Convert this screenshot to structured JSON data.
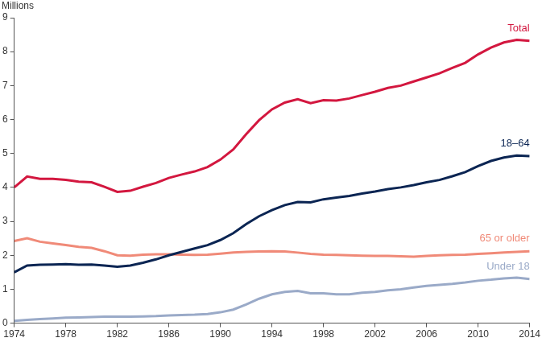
{
  "chart_data": {
    "type": "line",
    "ylabel": "Millions",
    "x": [
      1974,
      1975,
      1976,
      1977,
      1978,
      1979,
      1980,
      1981,
      1982,
      1983,
      1984,
      1985,
      1986,
      1987,
      1988,
      1989,
      1990,
      1991,
      1992,
      1993,
      1994,
      1995,
      1996,
      1997,
      1998,
      1999,
      2000,
      2001,
      2002,
      2003,
      2004,
      2005,
      2006,
      2007,
      2008,
      2009,
      2010,
      2011,
      2012,
      2013,
      2014
    ],
    "series": [
      {
        "name": "Total",
        "color": "#d3173f",
        "values": [
          4.0,
          4.32,
          4.25,
          4.25,
          4.22,
          4.17,
          4.15,
          4.02,
          3.87,
          3.9,
          4.02,
          4.13,
          4.28,
          4.38,
          4.47,
          4.6,
          4.82,
          5.12,
          5.57,
          5.98,
          6.3,
          6.5,
          6.6,
          6.48,
          6.57,
          6.56,
          6.62,
          6.72,
          6.82,
          6.93,
          7.0,
          7.12,
          7.24,
          7.36,
          7.52,
          7.67,
          7.92,
          8.12,
          8.27,
          8.35,
          8.32
        ]
      },
      {
        "name": "18–64",
        "color": "#0b2553",
        "values": [
          1.5,
          1.7,
          1.72,
          1.73,
          1.74,
          1.72,
          1.73,
          1.7,
          1.66,
          1.7,
          1.78,
          1.88,
          2.0,
          2.1,
          2.2,
          2.3,
          2.45,
          2.65,
          2.92,
          3.15,
          3.33,
          3.48,
          3.57,
          3.56,
          3.65,
          3.7,
          3.75,
          3.82,
          3.88,
          3.95,
          4.0,
          4.07,
          4.15,
          4.22,
          4.33,
          4.45,
          4.63,
          4.78,
          4.88,
          4.94,
          4.92
        ]
      },
      {
        "name": "65 or older",
        "color": "#f08a78",
        "values": [
          2.42,
          2.5,
          2.4,
          2.35,
          2.3,
          2.25,
          2.22,
          2.12,
          2.0,
          1.99,
          2.02,
          2.03,
          2.03,
          2.02,
          2.01,
          2.02,
          2.05,
          2.08,
          2.1,
          2.11,
          2.12,
          2.11,
          2.08,
          2.04,
          2.02,
          2.01,
          2.0,
          1.99,
          1.98,
          1.98,
          1.97,
          1.96,
          1.98,
          2.0,
          2.01,
          2.02,
          2.04,
          2.06,
          2.08,
          2.1,
          2.12
        ]
      },
      {
        "name": "Under 18",
        "color": "#9aaac8",
        "values": [
          0.07,
          0.1,
          0.12,
          0.14,
          0.16,
          0.17,
          0.18,
          0.19,
          0.19,
          0.19,
          0.2,
          0.21,
          0.23,
          0.24,
          0.25,
          0.27,
          0.32,
          0.4,
          0.55,
          0.72,
          0.85,
          0.92,
          0.95,
          0.88,
          0.88,
          0.85,
          0.85,
          0.9,
          0.92,
          0.97,
          1.0,
          1.05,
          1.1,
          1.13,
          1.16,
          1.2,
          1.25,
          1.28,
          1.32,
          1.34,
          1.3
        ]
      }
    ],
    "xlim": [
      1974,
      2014
    ],
    "xticks": [
      1974,
      1978,
      1982,
      1986,
      1990,
      1994,
      1998,
      2002,
      2006,
      2010,
      2014
    ],
    "ylim": [
      0,
      9
    ],
    "yticks": [
      0,
      1,
      2,
      3,
      4,
      5,
      6,
      7,
      8,
      9
    ],
    "grid": false
  }
}
